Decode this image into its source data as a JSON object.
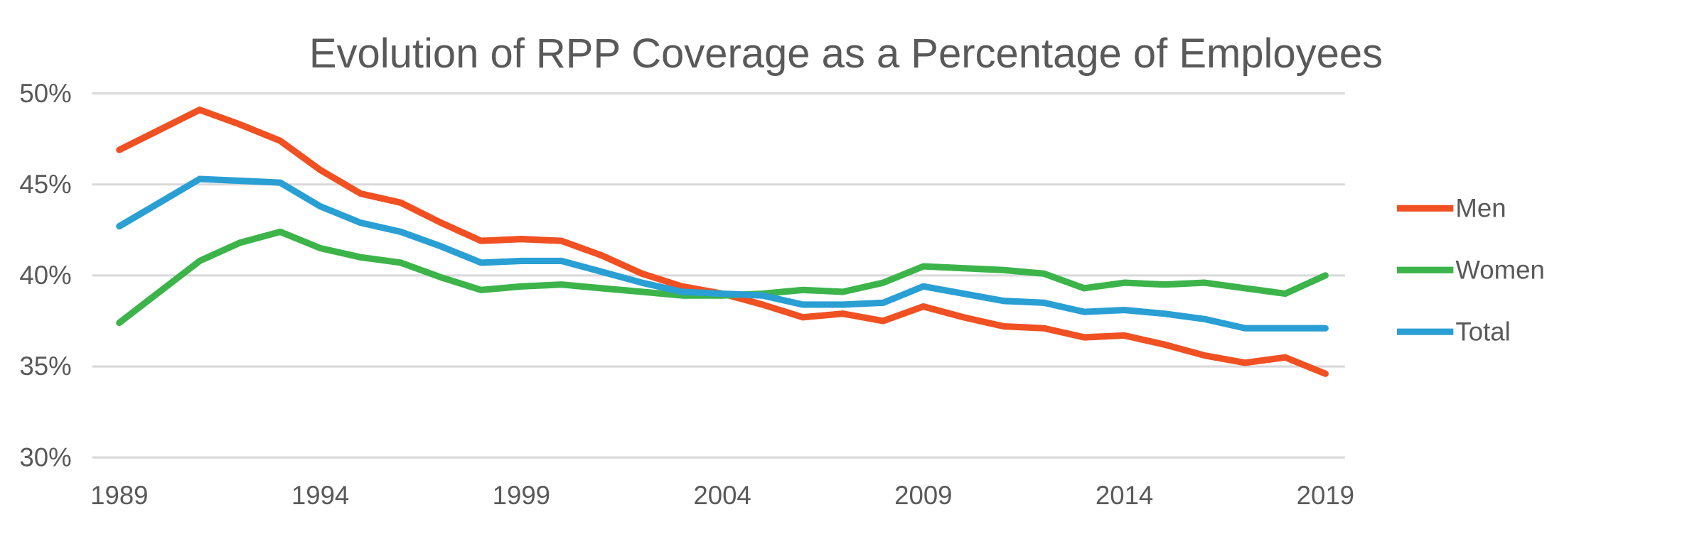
{
  "chart_data": {
    "type": "line",
    "title": "Evolution of RPP Coverage as a Percentage of Employees",
    "xlabel": "",
    "ylabel": "",
    "x": [
      1989,
      1990,
      1991,
      1992,
      1993,
      1994,
      1995,
      1996,
      1997,
      1998,
      1999,
      2000,
      2001,
      2002,
      2003,
      2004,
      2005,
      2006,
      2007,
      2008,
      2009,
      2010,
      2011,
      2012,
      2013,
      2014,
      2015,
      2016,
      2017,
      2018,
      2019
    ],
    "x_tick_labels": [
      "1989",
      "1994",
      "1999",
      "2004",
      "2009",
      "2014",
      "2019"
    ],
    "x_ticks": [
      1989,
      1994,
      1999,
      2004,
      2009,
      2014,
      2019
    ],
    "ylim": [
      30,
      50
    ],
    "y_ticks": [
      30,
      35,
      40,
      45,
      50
    ],
    "y_tick_labels": [
      "30%",
      "35%",
      "40%",
      "45%",
      "50%"
    ],
    "grid": "horizontal",
    "legend_position": "right",
    "series": [
      {
        "name": "Men",
        "color": "#F05022",
        "values": [
          46.9,
          48.0,
          49.1,
          48.3,
          47.4,
          45.8,
          44.5,
          44.0,
          42.9,
          41.9,
          42.0,
          41.9,
          41.1,
          40.1,
          39.4,
          39.0,
          38.4,
          37.7,
          37.9,
          37.5,
          38.3,
          37.7,
          37.2,
          37.1,
          36.6,
          36.7,
          36.2,
          35.6,
          35.2,
          35.5,
          34.6
        ]
      },
      {
        "name": "Women",
        "color": "#3CB44A",
        "values": [
          37.4,
          39.1,
          40.8,
          41.8,
          42.4,
          41.5,
          41.0,
          40.7,
          39.9,
          39.2,
          39.4,
          39.5,
          39.3,
          39.1,
          38.9,
          38.9,
          39.0,
          39.2,
          39.1,
          39.6,
          40.5,
          40.4,
          40.3,
          40.1,
          39.3,
          39.6,
          39.5,
          39.6,
          39.3,
          39.0,
          40.0
        ]
      },
      {
        "name": "Total",
        "color": "#2A9FD4",
        "values": [
          42.7,
          44.0,
          45.3,
          45.2,
          45.1,
          43.8,
          42.9,
          42.4,
          41.6,
          40.7,
          40.8,
          40.8,
          40.2,
          39.6,
          39.1,
          39.0,
          38.9,
          38.4,
          38.4,
          38.5,
          39.4,
          39.0,
          38.6,
          38.5,
          38.0,
          38.1,
          37.9,
          37.6,
          37.1,
          37.1,
          37.1
        ]
      }
    ]
  }
}
